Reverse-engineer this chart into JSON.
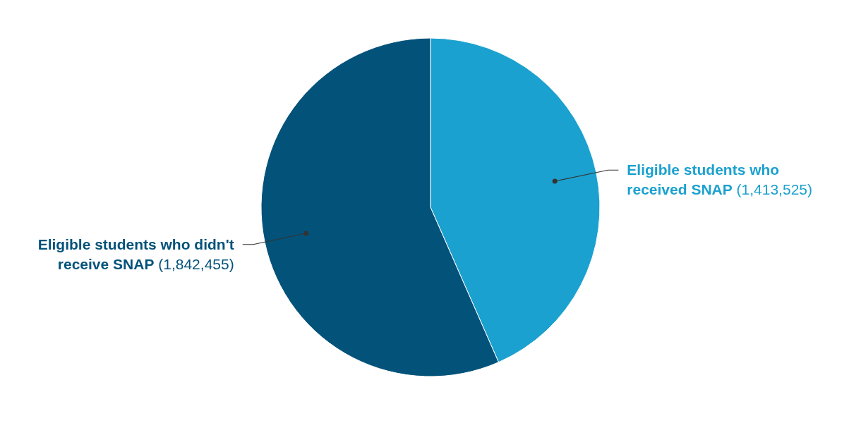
{
  "chart_data": {
    "type": "pie",
    "categories": [
      "Eligible students who received SNAP",
      "Eligible students who didn't receive SNAP"
    ],
    "values": [
      1413525,
      1842455
    ],
    "colors": [
      "#1ba1cf",
      "#03527a"
    ],
    "value_labels": [
      "(1,413,525)",
      "(1,842,455)"
    ]
  }
}
